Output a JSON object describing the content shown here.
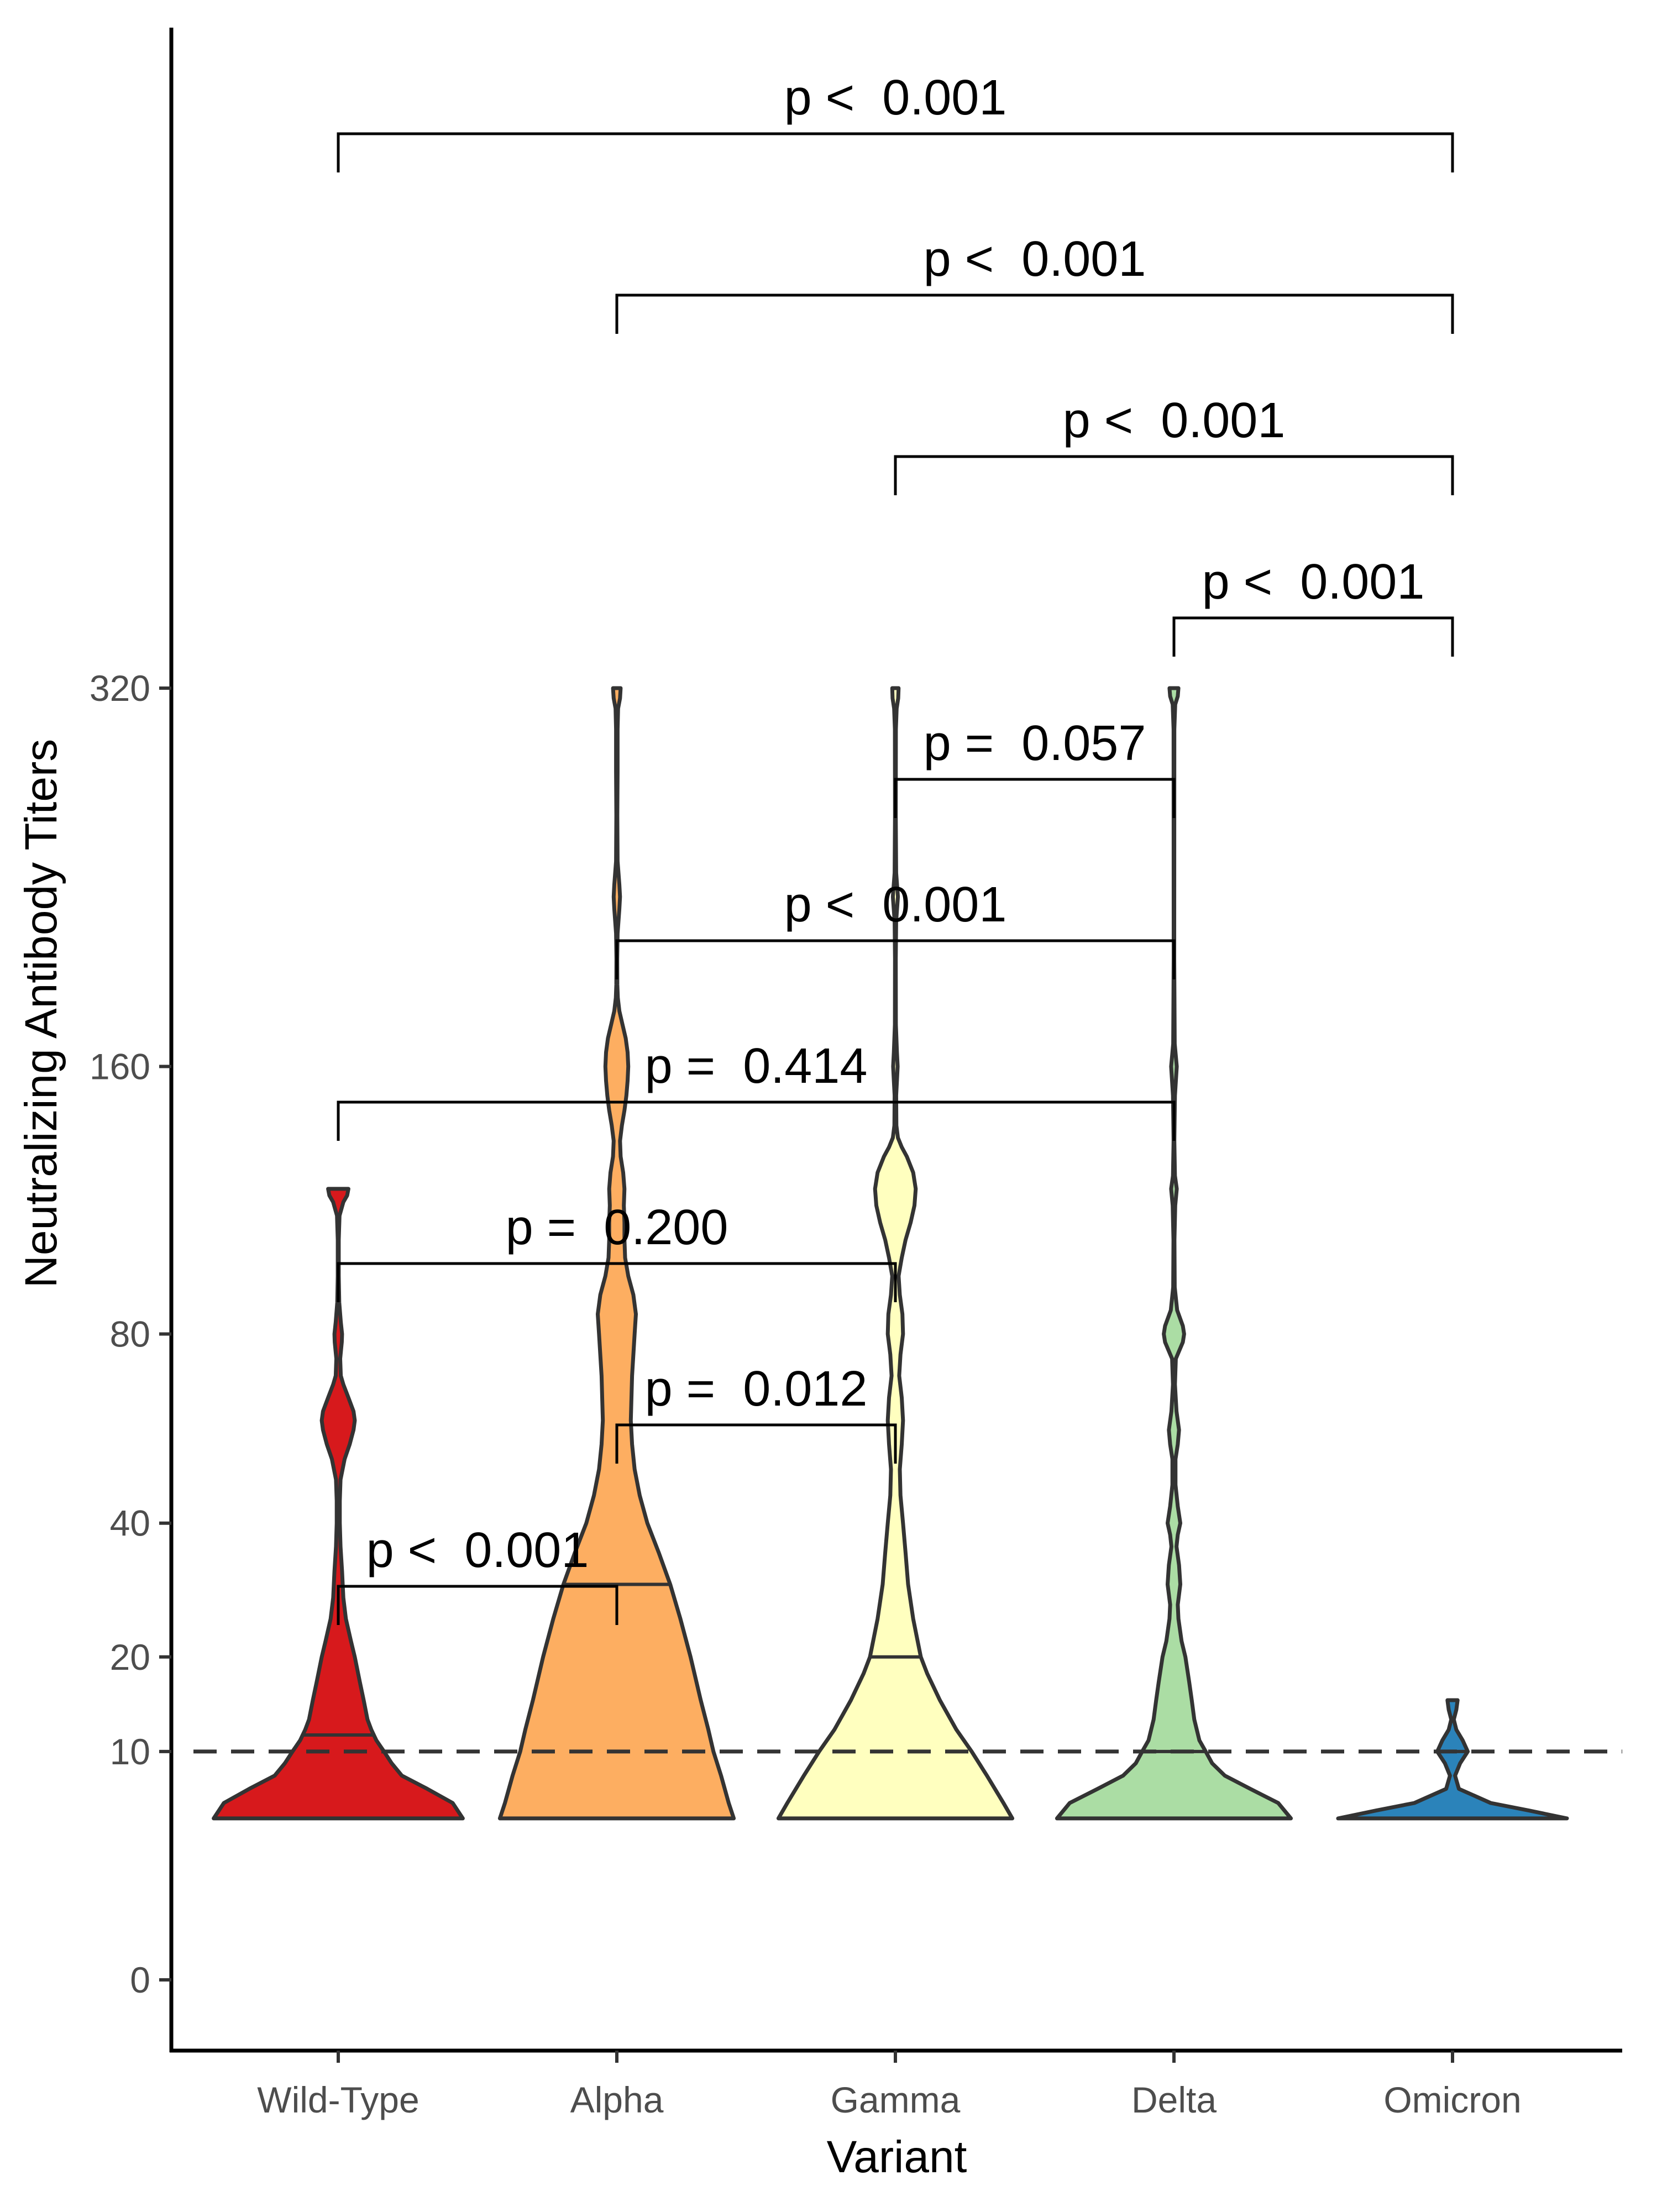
{
  "chart_data": {
    "type": "violin",
    "xlabel": "Variant",
    "ylabel": "Neutralizing Antibody Titers",
    "y_scale": "sqrt",
    "ylim": [
      0,
      320
    ],
    "yticks": [
      0,
      10,
      20,
      40,
      80,
      160,
      320
    ],
    "reference_line": {
      "y": 10,
      "style": "dashed"
    },
    "grid": false,
    "categories": [
      "Wild-Type",
      "Alpha",
      "Gamma",
      "Delta",
      "Omicron"
    ],
    "series": [
      {
        "category": "Wild-Type",
        "color": "#d7191c",
        "median": 11.5,
        "max": 120,
        "profile": [
          [
            5,
            0.98
          ],
          [
            6,
            0.9
          ],
          [
            7,
            0.7
          ],
          [
            8,
            0.5
          ],
          [
            9,
            0.42
          ],
          [
            10,
            0.36
          ],
          [
            11,
            0.3
          ],
          [
            12,
            0.26
          ],
          [
            13,
            0.23
          ],
          [
            15,
            0.2
          ],
          [
            17,
            0.17
          ],
          [
            20,
            0.13
          ],
          [
            22,
            0.1
          ],
          [
            25,
            0.06
          ],
          [
            28,
            0.04
          ],
          [
            32,
            0.03
          ],
          [
            36,
            0.018
          ],
          [
            40,
            0.012
          ],
          [
            44,
            0.012
          ],
          [
            48,
            0.018
          ],
          [
            52,
            0.05
          ],
          [
            55,
            0.09
          ],
          [
            58,
            0.12
          ],
          [
            60,
            0.13
          ],
          [
            62,
            0.12
          ],
          [
            65,
            0.08
          ],
          [
            68,
            0.04
          ],
          [
            70,
            0.02
          ],
          [
            74,
            0.015
          ],
          [
            78,
            0.028
          ],
          [
            80,
            0.03
          ],
          [
            83,
            0.02
          ],
          [
            88,
            0.008
          ],
          [
            95,
            0.004
          ],
          [
            105,
            0.004
          ],
          [
            112,
            0.01
          ],
          [
            116,
            0.04
          ],
          [
            118,
            0.07
          ],
          [
            120,
            0.08
          ]
        ]
      },
      {
        "category": "Alpha",
        "color": "#fdae61",
        "median": 30,
        "max": 320,
        "profile": [
          [
            5,
            0.92
          ],
          [
            6,
            0.88
          ],
          [
            8,
            0.82
          ],
          [
            10,
            0.76
          ],
          [
            12,
            0.72
          ],
          [
            15,
            0.66
          ],
          [
            20,
            0.58
          ],
          [
            25,
            0.5
          ],
          [
            30,
            0.42
          ],
          [
            35,
            0.33
          ],
          [
            40,
            0.24
          ],
          [
            45,
            0.18
          ],
          [
            50,
            0.14
          ],
          [
            55,
            0.12
          ],
          [
            60,
            0.11
          ],
          [
            70,
            0.12
          ],
          [
            80,
            0.14
          ],
          [
            85,
            0.15
          ],
          [
            90,
            0.13
          ],
          [
            95,
            0.09
          ],
          [
            100,
            0.065
          ],
          [
            105,
            0.06
          ],
          [
            110,
            0.06
          ],
          [
            115,
            0.055
          ],
          [
            120,
            0.06
          ],
          [
            125,
            0.05
          ],
          [
            130,
            0.03
          ],
          [
            135,
            0.025
          ],
          [
            140,
            0.04
          ],
          [
            145,
            0.06
          ],
          [
            150,
            0.075
          ],
          [
            155,
            0.085
          ],
          [
            160,
            0.09
          ],
          [
            165,
            0.085
          ],
          [
            170,
            0.07
          ],
          [
            175,
            0.045
          ],
          [
            180,
            0.02
          ],
          [
            185,
            0.008
          ],
          [
            190,
            0.004
          ],
          [
            200,
            0.003
          ],
          [
            210,
            0.006
          ],
          [
            220,
            0.02
          ],
          [
            225,
            0.025
          ],
          [
            230,
            0.02
          ],
          [
            240,
            0.006
          ],
          [
            260,
            0.004
          ],
          [
            280,
            0.006
          ],
          [
            300,
            0.006
          ],
          [
            310,
            0.01
          ],
          [
            315,
            0.025
          ],
          [
            320,
            0.03
          ]
        ]
      },
      {
        "category": "Gamma",
        "color": "#ffffbf",
        "median": 20,
        "max": 320,
        "profile": [
          [
            5,
            0.92
          ],
          [
            6,
            0.85
          ],
          [
            8,
            0.72
          ],
          [
            10,
            0.6
          ],
          [
            12,
            0.48
          ],
          [
            15,
            0.35
          ],
          [
            18,
            0.25
          ],
          [
            20,
            0.2
          ],
          [
            25,
            0.14
          ],
          [
            30,
            0.1
          ],
          [
            35,
            0.08
          ],
          [
            40,
            0.06
          ],
          [
            45,
            0.04
          ],
          [
            50,
            0.035
          ],
          [
            55,
            0.05
          ],
          [
            60,
            0.06
          ],
          [
            65,
            0.05
          ],
          [
            70,
            0.03
          ],
          [
            75,
            0.04
          ],
          [
            80,
            0.06
          ],
          [
            85,
            0.055
          ],
          [
            90,
            0.035
          ],
          [
            95,
            0.025
          ],
          [
            100,
            0.05
          ],
          [
            105,
            0.08
          ],
          [
            110,
            0.12
          ],
          [
            115,
            0.15
          ],
          [
            120,
            0.16
          ],
          [
            125,
            0.14
          ],
          [
            130,
            0.09
          ],
          [
            133,
            0.05
          ],
          [
            136,
            0.02
          ],
          [
            140,
            0.008
          ],
          [
            150,
            0.006
          ],
          [
            155,
            0.012
          ],
          [
            160,
            0.018
          ],
          [
            165,
            0.012
          ],
          [
            175,
            0.004
          ],
          [
            200,
            0.003
          ],
          [
            215,
            0.006
          ],
          [
            225,
            0.02
          ],
          [
            235,
            0.006
          ],
          [
            260,
            0.003
          ],
          [
            300,
            0.004
          ],
          [
            310,
            0.01
          ],
          [
            315,
            0.022
          ],
          [
            320,
            0.025
          ]
        ]
      },
      {
        "category": "Delta",
        "color": "#abdda4",
        "median": 10,
        "max": 320,
        "profile": [
          [
            5,
            0.92
          ],
          [
            6,
            0.82
          ],
          [
            7,
            0.6
          ],
          [
            8,
            0.4
          ],
          [
            9,
            0.3
          ],
          [
            10,
            0.25
          ],
          [
            11,
            0.2
          ],
          [
            13,
            0.16
          ],
          [
            15,
            0.14
          ],
          [
            17,
            0.12
          ],
          [
            20,
            0.09
          ],
          [
            22,
            0.06
          ],
          [
            25,
            0.035
          ],
          [
            27,
            0.03
          ],
          [
            30,
            0.05
          ],
          [
            33,
            0.04
          ],
          [
            36,
            0.02
          ],
          [
            38,
            0.03
          ],
          [
            40,
            0.05
          ],
          [
            43,
            0.03
          ],
          [
            47,
            0.012
          ],
          [
            52,
            0.012
          ],
          [
            55,
            0.03
          ],
          [
            58,
            0.04
          ],
          [
            62,
            0.02
          ],
          [
            68,
            0.008
          ],
          [
            74,
            0.015
          ],
          [
            78,
            0.07
          ],
          [
            80,
            0.08
          ],
          [
            82,
            0.07
          ],
          [
            86,
            0.025
          ],
          [
            92,
            0.006
          ],
          [
            105,
            0.004
          ],
          [
            115,
            0.01
          ],
          [
            120,
            0.022
          ],
          [
            124,
            0.008
          ],
          [
            135,
            0.003
          ],
          [
            150,
            0.008
          ],
          [
            160,
            0.022
          ],
          [
            168,
            0.006
          ],
          [
            200,
            0.002
          ],
          [
            300,
            0.003
          ],
          [
            312,
            0.01
          ],
          [
            316,
            0.03
          ],
          [
            320,
            0.035
          ]
        ]
      },
      {
        "category": "Omicron",
        "color": "#2b83ba",
        "median": 10,
        "max": 15,
        "profile": [
          [
            5,
            0.9
          ],
          [
            5.5,
            0.6
          ],
          [
            6,
            0.3
          ],
          [
            7,
            0.05
          ],
          [
            8,
            0.02
          ],
          [
            9,
            0.06
          ],
          [
            10,
            0.12
          ],
          [
            11,
            0.08
          ],
          [
            12,
            0.03
          ],
          [
            13,
            0.01
          ],
          [
            14,
            0.03
          ],
          [
            15,
            0.04
          ]
        ]
      }
    ],
    "comparisons": [
      {
        "from": "Wild-Type",
        "to": "Alpha",
        "label": "p <  0.001"
      },
      {
        "from": "Alpha",
        "to": "Gamma",
        "label": "p =  0.012"
      },
      {
        "from": "Wild-Type",
        "to": "Gamma",
        "label": "p =  0.200"
      },
      {
        "from": "Wild-Type",
        "to": "Delta",
        "label": "p =  0.414"
      },
      {
        "from": "Alpha",
        "to": "Delta",
        "label": "p <  0.001"
      },
      {
        "from": "Gamma",
        "to": "Delta",
        "label": "p =  0.057"
      },
      {
        "from": "Delta",
        "to": "Omicron",
        "label": "p <  0.001"
      },
      {
        "from": "Gamma",
        "to": "Omicron",
        "label": "p <  0.001"
      },
      {
        "from": "Alpha",
        "to": "Omicron",
        "label": "p <  0.001"
      },
      {
        "from": "Wild-Type",
        "to": "Omicron",
        "label": "p <  0.001"
      }
    ]
  }
}
